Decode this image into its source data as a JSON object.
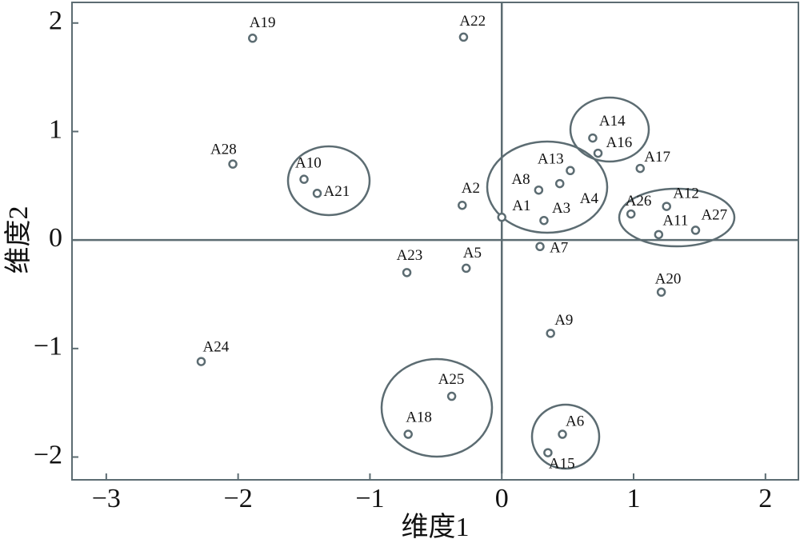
{
  "chart_data": {
    "type": "scatter",
    "x_label": "维度1",
    "y_label": "维度2",
    "labels": [
      "A19",
      "A22",
      "A28",
      "A10",
      "A21",
      "A2",
      "A14",
      "A16",
      "A17",
      "A13",
      "A8",
      "A4",
      "A1",
      "A3",
      "A26",
      "A12",
      "A11",
      "A27",
      "A7",
      "A23",
      "A5",
      "A20",
      "A9",
      "A24",
      "A25",
      "A18",
      "A6",
      "A15"
    ],
    "x": [
      -1.89,
      -0.29,
      -2.04,
      -1.5,
      -1.4,
      -0.3,
      0.69,
      0.73,
      1.05,
      0.52,
      0.28,
      0.44,
      0.0,
      0.32,
      0.98,
      1.25,
      1.19,
      1.47,
      0.29,
      -0.72,
      -0.27,
      1.21,
      0.37,
      -2.28,
      -0.38,
      -0.71,
      0.46,
      0.35
    ],
    "y": [
      1.86,
      1.87,
      0.7,
      0.56,
      0.43,
      0.32,
      0.94,
      0.8,
      0.66,
      0.64,
      0.46,
      0.52,
      0.21,
      0.18,
      0.24,
      0.31,
      0.05,
      0.09,
      -0.06,
      -0.3,
      -0.26,
      -0.48,
      -0.86,
      -1.12,
      -1.44,
      -1.79,
      -1.79,
      -1.96
    ],
    "color": "#5c6c72",
    "xlim": [
      -3.26,
      2.25
    ],
    "ylim": [
      -2.21,
      2.19
    ],
    "xticks": [
      {
        "value": -3,
        "label": "−3"
      },
      {
        "value": -2,
        "label": "−2"
      },
      {
        "value": -1,
        "label": "−1"
      },
      0,
      1,
      2
    ],
    "yticks": [
      {
        "value": -2,
        "label": "−2"
      },
      {
        "value": -1,
        "label": "−1"
      },
      0,
      1,
      2
    ]
  }
}
